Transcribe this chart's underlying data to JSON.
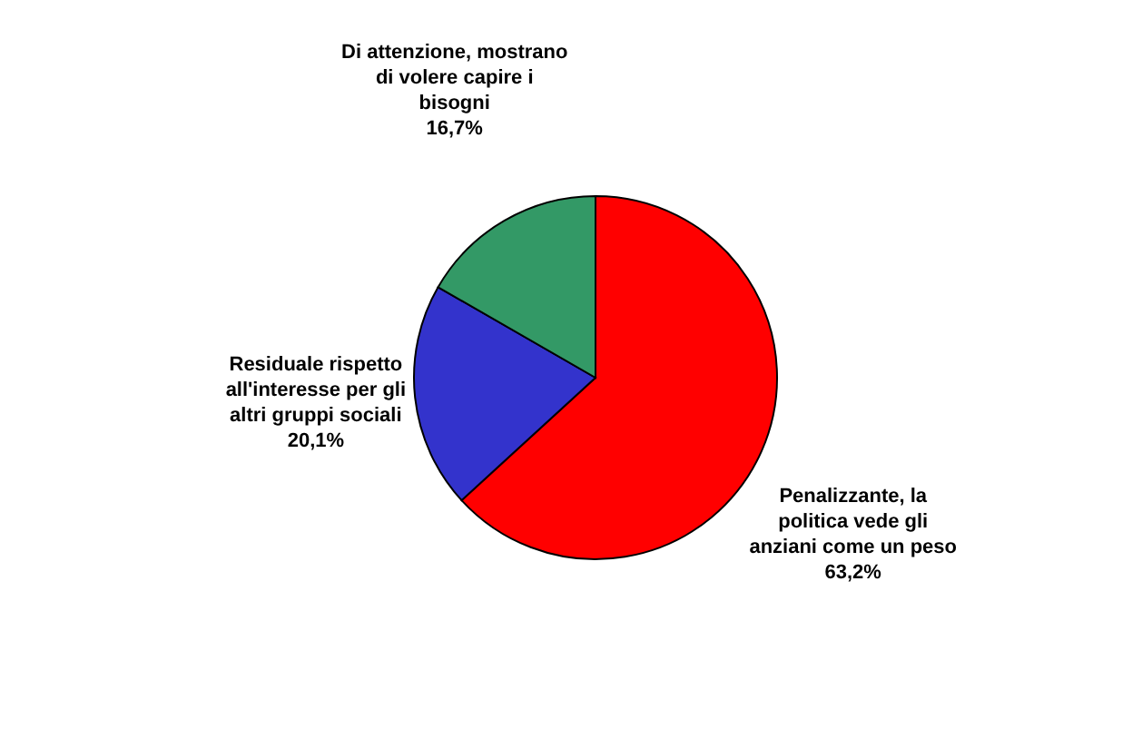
{
  "chart_data": {
    "type": "pie",
    "categories": [
      "Penalizzante, la politica vede gli anziani come un peso",
      "Residuale rispetto all'interesse per gli altri gruppi sociali",
      "Di attenzione, mostrano di volere capire i bisogni"
    ],
    "values": [
      63.2,
      20.1,
      16.7
    ],
    "value_labels": [
      "63,2%",
      "20,1%",
      "16,7%"
    ],
    "colors": [
      "#ff0000",
      "#3333cc",
      "#339966"
    ]
  }
}
